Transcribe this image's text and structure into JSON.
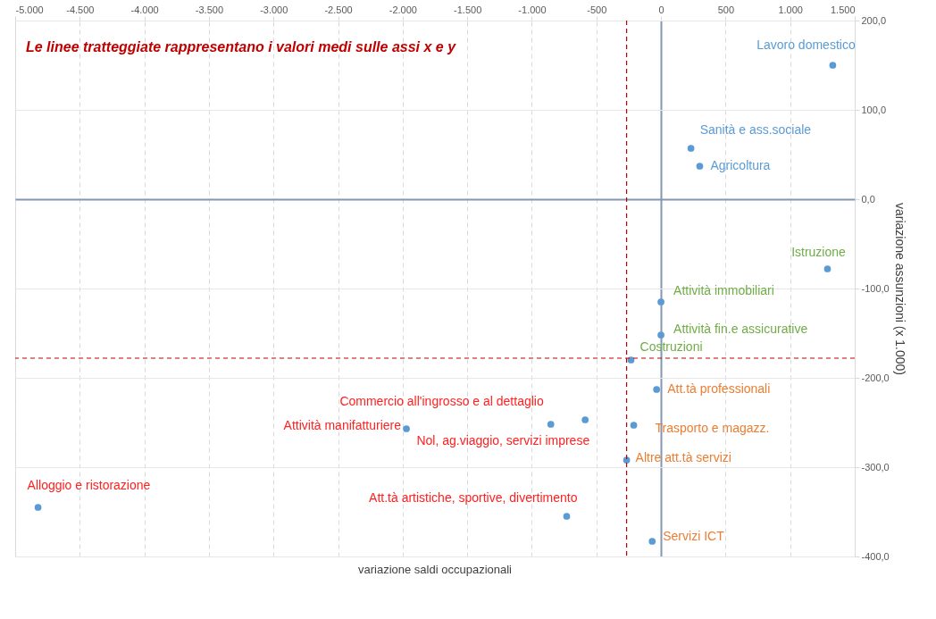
{
  "chart_data": {
    "type": "scatter",
    "xlabel": "variazione saldi occupazionali",
    "ylabel": "variazione assunzioni (x 1.000)",
    "annotations": [
      "Le linee tratteggiate rappresentano i valori medi sulle assi x e y"
    ],
    "xlim": [
      -5000,
      1500
    ],
    "xticks": [
      {
        "value": -5000,
        "label": "-5.000"
      },
      {
        "value": -4500,
        "label": "-4.500"
      },
      {
        "value": -4000,
        "label": "-4.000"
      },
      {
        "value": -3500,
        "label": "-3.500"
      },
      {
        "value": -3000,
        "label": "-3.000"
      },
      {
        "value": -2500,
        "label": "-2.500"
      },
      {
        "value": -2000,
        "label": "-2.000"
      },
      {
        "value": -1500,
        "label": "-1.500"
      },
      {
        "value": -1000,
        "label": "-1.000"
      },
      -500,
      0,
      500,
      {
        "value": 1000,
        "label": "1.000"
      },
      {
        "value": 1500,
        "label": "1.500"
      }
    ],
    "ylim": [
      -400,
      200
    ],
    "yticks": [
      {
        "value": -400,
        "label": "-400,0"
      },
      {
        "value": -300,
        "label": "-300,0"
      },
      {
        "value": -200,
        "label": "-200,0"
      },
      {
        "value": -100,
        "label": "-100,0"
      },
      {
        "value": 0,
        "label": "0,0"
      },
      {
        "value": 100,
        "label": "100,0"
      },
      {
        "value": 200,
        "label": "200,0"
      }
    ],
    "grid": true,
    "marker": "circle",
    "series": [
      {
        "color": "#5b9bd5",
        "x": [
          1330,
          232,
          300
        ],
        "values": [
          150,
          57,
          37
        ],
        "value_labels": [
          "Lavoro domestico",
          "Sanità e ass.sociale",
          "Agricoltura"
        ]
      },
      {
        "color": "#5b9bd5",
        "x": [
          1289,
          0,
          0,
          -232
        ],
        "values": [
          -78,
          -115,
          -152,
          -180
        ],
        "value_labels": [
          "Istruzione",
          "Attività immobiliari",
          "Attività fin.e assicurative",
          "Costruzioni"
        ]
      },
      {
        "color": "#5b9bd5",
        "x": [
          -34,
          -211,
          -266,
          -68
        ],
        "values": [
          -213,
          -253,
          -292,
          -383
        ],
        "value_labels": [
          "Att.tà professionali",
          "Trasporto e magazz.",
          "Altre att.tà servizi",
          "Servizi ICT"
        ]
      },
      {
        "color": "#5b9bd5",
        "x": [
          -853,
          -1971,
          -587,
          -4823,
          -730
        ],
        "values": [
          -252,
          -257,
          -247,
          -345,
          -355
        ],
        "value_labels": [
          "Commercio all'ingrosso e al dettaglio",
          "Attività manifatturiere",
          "Nol, ag.viaggio, servizi imprese",
          "Alloggio e ristorazione",
          "Att.tà artistiche, sportive, divertimento"
        ]
      }
    ],
    "ref_lines": [
      {
        "axis": "x",
        "value": -266,
        "color": "#c00000",
        "line_style": "dashed"
      },
      {
        "axis": "y",
        "value": -178,
        "color": "#c00000",
        "line_style": "dashed"
      }
    ]
  }
}
